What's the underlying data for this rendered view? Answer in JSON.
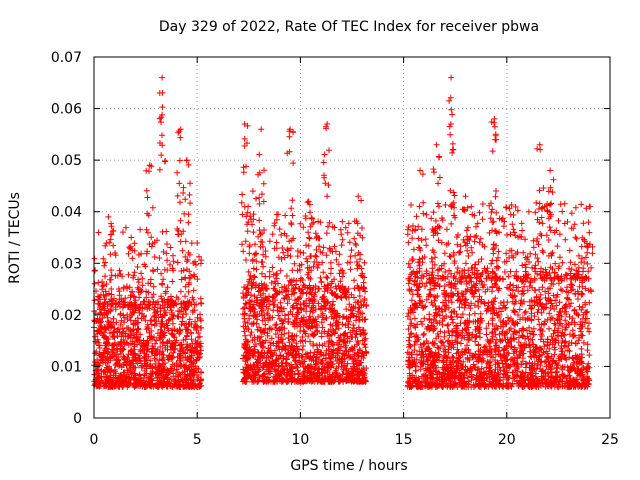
{
  "chart_data": {
    "type": "scatter",
    "title": "Day 329 of 2022, Rate Of TEC Index for receiver pbwa",
    "xlabel": "GPS time / hours",
    "ylabel": "ROTI / TECUs",
    "xlim": [
      0,
      25
    ],
    "ylim": [
      0,
      0.07
    ],
    "x_ticks": [
      "0",
      "5",
      "10",
      "15",
      "20",
      "25"
    ],
    "y_ticks": [
      "0",
      "0.01",
      "0.02",
      "0.03",
      "0.04",
      "0.05",
      "0.06",
      "0.07"
    ],
    "grid": true,
    "marker": "+",
    "color": "#ff0000",
    "segments": [
      {
        "x_range": [
          0.0,
          5.2
        ],
        "typical": [
          0.006,
          0.022
        ],
        "peaks": [
          [
            0.7,
            0.039
          ],
          [
            1.8,
            0.035
          ],
          [
            2.7,
            0.049
          ],
          [
            3.3,
            0.066
          ],
          [
            4.2,
            0.056
          ],
          [
            4.5,
            0.05
          ]
        ]
      },
      {
        "x_range": [
          7.2,
          13.2
        ],
        "typical": [
          0.007,
          0.025
        ],
        "peaks": [
          [
            7.3,
            0.057
          ],
          [
            7.7,
            0.044
          ],
          [
            8.1,
            0.056
          ],
          [
            9.5,
            0.056
          ],
          [
            10.4,
            0.042
          ],
          [
            11.3,
            0.057
          ],
          [
            12.8,
            0.043
          ]
        ]
      },
      {
        "x_range": [
          15.2,
          24.0
        ],
        "typical": [
          0.006,
          0.027
        ],
        "peaks": [
          [
            15.8,
            0.048
          ],
          [
            16.6,
            0.053
          ],
          [
            17.3,
            0.066
          ],
          [
            18.0,
            0.043
          ],
          [
            19.4,
            0.058
          ],
          [
            21.6,
            0.053
          ],
          [
            22.1,
            0.048
          ],
          [
            24.0,
            0.041
          ]
        ]
      }
    ]
  }
}
